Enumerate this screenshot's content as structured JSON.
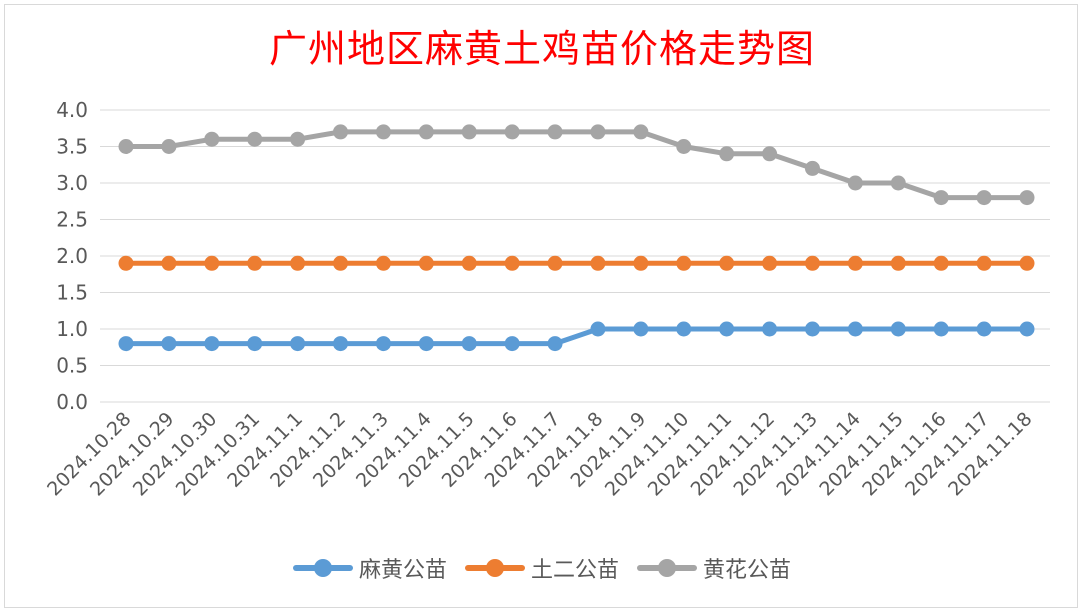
{
  "chart_data": {
    "type": "line",
    "title": "广州地区麻黄土鸡苗价格走势图",
    "categories": [
      "2024.10.28",
      "2024.10.29",
      "2024.10.30",
      "2024.10.31",
      "2024.11.1",
      "2024.11.2",
      "2024.11.3",
      "2024.11.4",
      "2024.11.5",
      "2024.11.6",
      "2024.11.7",
      "2024.11.8",
      "2024.11.9",
      "2024.11.10",
      "2024.11.11",
      "2024.11.12",
      "2024.11.13",
      "2024.11.14",
      "2024.11.15",
      "2024.11.16",
      "2024.11.17",
      "2024.11.18"
    ],
    "ylim": [
      0,
      4
    ],
    "yticks": [
      "0.0",
      "0.5",
      "1.0",
      "1.5",
      "2.0",
      "2.5",
      "3.0",
      "3.5",
      "4.0"
    ],
    "grid": true,
    "legend_position": "bottom",
    "series": [
      {
        "name": "麻黄公苗",
        "color": "#5b9bd5",
        "values": [
          0.8,
          0.8,
          0.8,
          0.8,
          0.8,
          0.8,
          0.8,
          0.8,
          0.8,
          0.8,
          0.8,
          1.0,
          1.0,
          1.0,
          1.0,
          1.0,
          1.0,
          1.0,
          1.0,
          1.0,
          1.0,
          1.0
        ]
      },
      {
        "name": "土二公苗",
        "color": "#ed7d31",
        "values": [
          1.9,
          1.9,
          1.9,
          1.9,
          1.9,
          1.9,
          1.9,
          1.9,
          1.9,
          1.9,
          1.9,
          1.9,
          1.9,
          1.9,
          1.9,
          1.9,
          1.9,
          1.9,
          1.9,
          1.9,
          1.9,
          1.9
        ]
      },
      {
        "name": "黄花公苗",
        "color": "#a5a5a5",
        "values": [
          3.5,
          3.5,
          3.6,
          3.6,
          3.6,
          3.7,
          3.7,
          3.7,
          3.7,
          3.7,
          3.7,
          3.7,
          3.7,
          3.5,
          3.4,
          3.4,
          3.2,
          3.0,
          3.0,
          2.8,
          2.8,
          2.8
        ]
      }
    ]
  }
}
